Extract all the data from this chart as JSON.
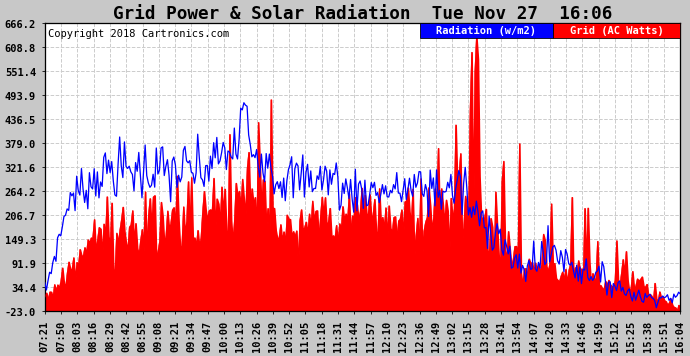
{
  "title": "Grid Power & Solar Radiation  Tue Nov 27  16:06",
  "copyright": "Copyright 2018 Cartronics.com",
  "yticks": [
    666.2,
    608.8,
    551.4,
    493.9,
    436.5,
    379.0,
    321.6,
    264.2,
    206.7,
    149.3,
    91.9,
    34.4,
    -23.0
  ],
  "ymin": -23.0,
  "ymax": 666.2,
  "legend_radiation_label": "Radiation (w/m2)",
  "legend_grid_label": "Grid (AC Watts)",
  "radiation_color": "#0000ff",
  "grid_fill_color": "#ff0000",
  "background_color": "#c8c8c8",
  "plot_bg_color": "#ffffff",
  "grid_line_color": "#cccccc",
  "xtick_labels": [
    "07:21",
    "07:50",
    "08:03",
    "08:16",
    "08:29",
    "08:42",
    "08:55",
    "09:08",
    "09:21",
    "09:34",
    "09:47",
    "10:00",
    "10:13",
    "10:26",
    "10:39",
    "10:52",
    "11:05",
    "11:18",
    "11:31",
    "11:44",
    "11:57",
    "12:10",
    "12:23",
    "12:36",
    "12:49",
    "13:02",
    "13:15",
    "13:28",
    "13:41",
    "13:54",
    "14:07",
    "14:20",
    "14:33",
    "14:46",
    "14:59",
    "15:12",
    "15:25",
    "15:38",
    "15:51",
    "16:04"
  ],
  "title_fontsize": 11,
  "tick_fontsize": 6.5,
  "copyright_fontsize": 6.5
}
